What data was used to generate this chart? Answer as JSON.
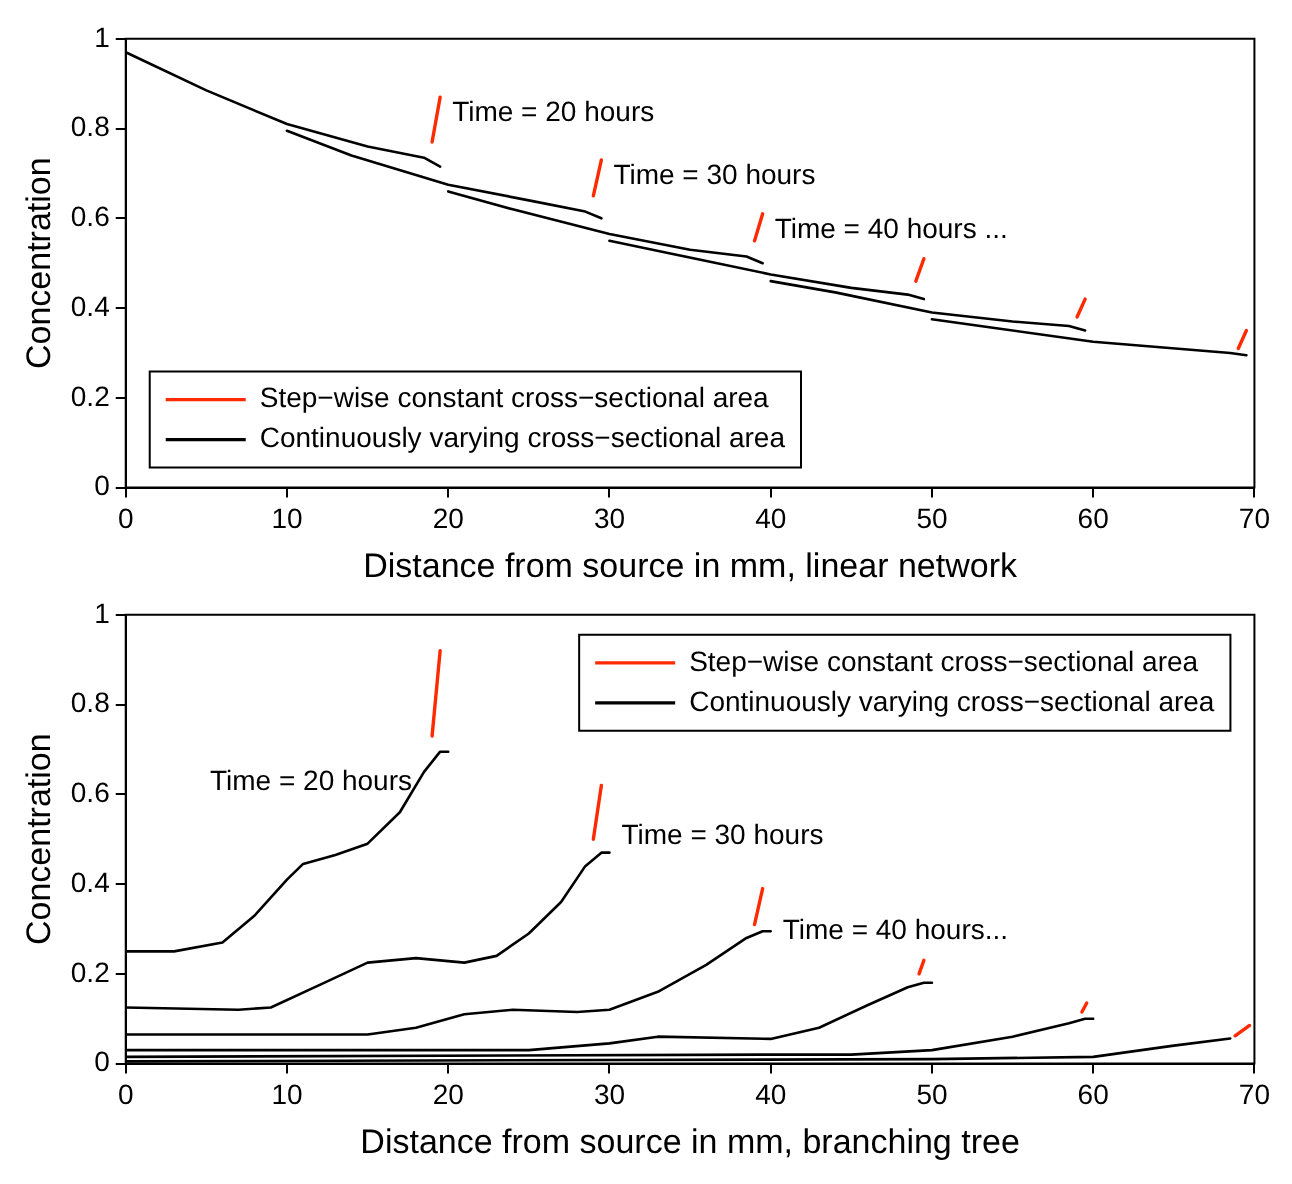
{
  "chart_data": [
    {
      "type": "line",
      "xlabel": "Distance from source in mm, linear network",
      "ylabel": "Concentration",
      "xlim": [
        0,
        70
      ],
      "xticks": [
        0,
        10,
        20,
        30,
        40,
        50,
        60,
        70
      ],
      "ylim": [
        0,
        1
      ],
      "yticks": [
        0,
        0.2,
        0.4,
        0.6,
        0.8,
        1
      ],
      "grid": false,
      "legend": "bottom left",
      "marker": "none",
      "line_style": "solid",
      "annotations": [
        {
          "text": "Time = 20 hours",
          "x": 19.5,
          "y": 0.87
        },
        {
          "text": "Time = 30 hours",
          "x": 29.5,
          "y": 0.73
        },
        {
          "text": "Time = 40 hours ...",
          "x": 39.5,
          "y": 0.61
        }
      ],
      "series": [
        {
          "name": "Step−wise constant cross−sectional area",
          "color": "#ff2a00",
          "x": [
            19,
            19.5
          ],
          "values": [
            0.77,
            0.87
          ]
        },
        {
          "name": "Continuously varying cross−sectional area",
          "color": "#000000",
          "x": [
            0,
            5,
            10,
            15,
            18.5,
            19.5
          ],
          "values": [
            0.97,
            0.885,
            0.81,
            0.76,
            0.735,
            0.715
          ]
        },
        {
          "color": "#ff2a00",
          "x": [
            29,
            29.5
          ],
          "values": [
            0.65,
            0.73
          ]
        },
        {
          "color": "#000000",
          "x": [
            10,
            14,
            20,
            25,
            28.5,
            29.5
          ],
          "values": [
            0.795,
            0.74,
            0.675,
            0.64,
            0.615,
            0.6
          ]
        },
        {
          "color": "#ff2a00",
          "x": [
            39,
            39.5
          ],
          "values": [
            0.55,
            0.61
          ]
        },
        {
          "color": "#000000",
          "x": [
            20,
            24,
            30,
            35,
            38.5,
            39.5
          ],
          "values": [
            0.66,
            0.62,
            0.565,
            0.53,
            0.515,
            0.5
          ]
        },
        {
          "color": "#ff2a00",
          "x": [
            49,
            49.5
          ],
          "values": [
            0.46,
            0.51
          ]
        },
        {
          "color": "#000000",
          "x": [
            30,
            34,
            40,
            45,
            48.5,
            49.5
          ],
          "values": [
            0.55,
            0.52,
            0.475,
            0.445,
            0.43,
            0.42
          ]
        },
        {
          "color": "#ff2a00",
          "x": [
            59,
            59.5
          ],
          "values": [
            0.38,
            0.42
          ]
        },
        {
          "color": "#000000",
          "x": [
            40,
            44,
            50,
            55,
            58.5,
            59.5
          ],
          "values": [
            0.46,
            0.435,
            0.39,
            0.37,
            0.36,
            0.35
          ]
        },
        {
          "color": "#ff2a00",
          "x": [
            69,
            69.5
          ],
          "values": [
            0.31,
            0.35
          ]
        },
        {
          "color": "#000000",
          "x": [
            50,
            54,
            60,
            68.5,
            69.5
          ],
          "values": [
            0.375,
            0.355,
            0.325,
            0.3,
            0.295
          ]
        }
      ]
    },
    {
      "type": "line",
      "xlabel": "Distance from source in mm, branching tree",
      "ylabel": "Concentration",
      "xlim": [
        0,
        70
      ],
      "xticks": [
        0,
        10,
        20,
        30,
        40,
        50,
        60,
        70
      ],
      "ylim": [
        0,
        1
      ],
      "yticks": [
        0,
        0.2,
        0.4,
        0.6,
        0.8,
        1
      ],
      "grid": false,
      "legend": "top right",
      "marker": "none",
      "line_style": "solid",
      "annotations": [
        {
          "text": "Time = 20 hours",
          "x": 18.5,
          "y": 0.65
        },
        {
          "text": "Time = 30 hours",
          "x": 30,
          "y": 0.47
        },
        {
          "text": "Time = 40 hours...",
          "x": 40,
          "y": 0.295
        }
      ],
      "series": [
        {
          "name": "Step−wise constant cross−sectional area",
          "color": "#ff2a00",
          "x": [
            19,
            19.5
          ],
          "values": [
            0.73,
            0.92
          ]
        },
        {
          "name": "Continuously varying cross−sectional area",
          "color": "#000000",
          "x": [
            0,
            3,
            6,
            8,
            10,
            11,
            13,
            15,
            17,
            18.5,
            19.5,
            20
          ],
          "values": [
            0.25,
            0.25,
            0.27,
            0.33,
            0.41,
            0.445,
            0.465,
            0.49,
            0.56,
            0.65,
            0.695,
            0.695
          ]
        },
        {
          "color": "#ff2a00",
          "x": [
            29,
            29.5
          ],
          "values": [
            0.5,
            0.62
          ]
        },
        {
          "color": "#000000",
          "x": [
            0,
            7,
            9,
            12,
            15,
            18,
            21,
            23,
            25,
            27,
            28.5,
            29.5,
            30
          ],
          "values": [
            0.125,
            0.12,
            0.125,
            0.175,
            0.225,
            0.235,
            0.225,
            0.24,
            0.29,
            0.36,
            0.44,
            0.47,
            0.47
          ]
        },
        {
          "color": "#ff2a00",
          "x": [
            39,
            39.5
          ],
          "values": [
            0.31,
            0.39
          ]
        },
        {
          "color": "#000000",
          "x": [
            0,
            15,
            18,
            21,
            24,
            28,
            30,
            33,
            36,
            38.5,
            39.5,
            40
          ],
          "values": [
            0.065,
            0.065,
            0.08,
            0.11,
            0.12,
            0.115,
            0.12,
            0.16,
            0.22,
            0.28,
            0.295,
            0.295
          ]
        },
        {
          "color": "#ff2a00",
          "x": [
            49.2,
            49.5
          ],
          "values": [
            0.2,
            0.23
          ]
        },
        {
          "color": "#000000",
          "x": [
            0,
            25,
            30,
            33,
            40,
            43,
            46,
            48.5,
            49.5,
            50
          ],
          "values": [
            0.03,
            0.03,
            0.045,
            0.06,
            0.055,
            0.08,
            0.13,
            0.17,
            0.18,
            0.18
          ]
        },
        {
          "color": "#ff2a00",
          "x": [
            59.3,
            59.6
          ],
          "values": [
            0.115,
            0.135
          ]
        },
        {
          "color": "#000000",
          "x": [
            0,
            40,
            45,
            50,
            55,
            58.5,
            59.5,
            60
          ],
          "values": [
            0.015,
            0.02,
            0.02,
            0.03,
            0.06,
            0.09,
            0.1,
            0.1
          ]
        },
        {
          "color": "#ff2a00",
          "x": [
            68.8,
            69.7
          ],
          "values": [
            0.062,
            0.085
          ]
        },
        {
          "color": "#000000",
          "x": [
            0,
            50,
            60,
            65,
            68.5
          ],
          "values": [
            0.005,
            0.01,
            0.015,
            0.04,
            0.056
          ]
        }
      ]
    }
  ]
}
